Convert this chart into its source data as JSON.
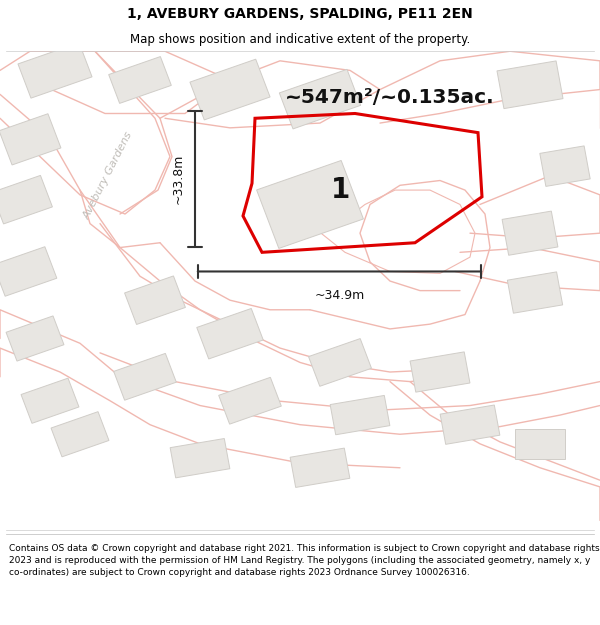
{
  "title": "1, AVEBURY GARDENS, SPALDING, PE11 2EN",
  "subtitle": "Map shows position and indicative extent of the property.",
  "footer": "Contains OS data © Crown copyright and database right 2021. This information is subject to Crown copyright and database rights 2023 and is reproduced with the permission of HM Land Registry. The polygons (including the associated geometry, namely x, y co-ordinates) are subject to Crown copyright and database rights 2023 Ordnance Survey 100026316.",
  "area_label": "~547m²/~0.135ac.",
  "width_label": "~34.9m",
  "height_label": "~33.8m",
  "plot_number": "1",
  "map_bg": "#f7f6f4",
  "road_outline_color": "#f0b8b0",
  "building_fill": "#e8e6e2",
  "building_edge": "#d0cdc8",
  "red_color": "#dd0000",
  "dim_color": "#333333",
  "street_label_color": "#c0bdb8",
  "title_fontsize": 10,
  "subtitle_fontsize": 8.5,
  "footer_fontsize": 6.5
}
